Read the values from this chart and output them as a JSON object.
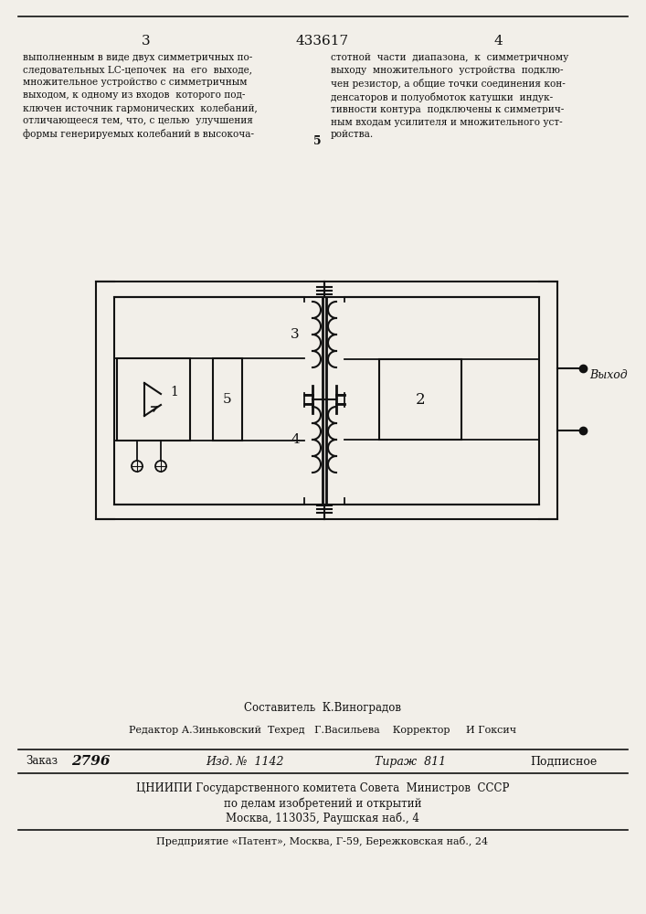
{
  "page_number_left": "3",
  "patent_number": "433617",
  "page_number_right": "4",
  "text_left": "выполненным в виде двух симметричных по-\nследовательных LC-цепочек  на  его  выходе,\nмножительное устройство с симметричным\nвыходом, к одному из входов  которого под-\nключен источник гармонических  колебаний,\nотличающееся тем, что, с целью  улучшения\nформы генерируемых колебаний в высокоча-",
  "text_right": "стотной  части  диапазона,  к  симметричному\nвыходу  множительного  устройства  подклю-\nчен резистор, а общие точки соединения кон-\nденсаторов и полуобмоток катушки  индук-\nтивности контура  подключены к симметрич-\nным входам усилителя и множительного уст-\nройства.",
  "text_num_5": "5",
  "label_1": "1",
  "label_2": "2",
  "label_3": "3",
  "label_4": "4",
  "label_5": "5",
  "vyhod_label": "Выход",
  "bottom_line1": "Составитель  К.Виноградов",
  "bottom_line2": "Редактор А.Зиньковский  Техред   Г.Васильева    Корректор     И Гоксич",
  "bottom_line3_label": "Заказ",
  "bottom_line3_zak": "2796",
  "bottom_line3_izd": "Изд. №  1142",
  "bottom_line3_tir": "Тираж  811",
  "bottom_line3_pod": "Подписное",
  "bottom_line4": "ЦНИИПИ Государственного комитета Совета  Министров  СССР",
  "bottom_line5": "по делам изобретений и открытий",
  "bottom_line6": "Москва, 113035, Раушская наб., 4",
  "bottom_line7": "Предприятие «Патент», Москва, Г-59, Бережковская наб., 24",
  "bg_color": "#f2efe9",
  "line_color": "#111111",
  "text_color": "#111111"
}
